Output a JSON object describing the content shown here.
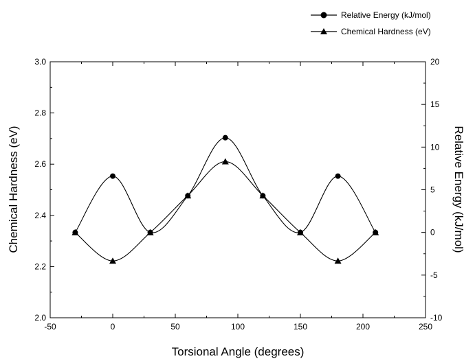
{
  "chart_data": {
    "type": "line",
    "title": "",
    "xlabel": "Torsional Angle (degrees)",
    "ylabel_left": "Chemical Hardness (eV)",
    "ylabel_right": "Relative Energy (kJ/mol)",
    "xlim": [
      -50,
      250
    ],
    "ylim_left": [
      2.0,
      3.0
    ],
    "ylim_right": [
      -10,
      20
    ],
    "x_ticks": [
      "-50",
      "0",
      "50",
      "100",
      "150",
      "200",
      "250"
    ],
    "y_left_ticks": [
      "2.0",
      "2.2",
      "2.4",
      "2.6",
      "2.8",
      "3.0"
    ],
    "y_right_ticks": [
      "-10",
      "-5",
      "0",
      "5",
      "10",
      "15",
      "20"
    ],
    "grid": false,
    "legend_position": "top-right, outside plot",
    "series": [
      {
        "name": "Relative Energy (kJ/mol)",
        "axis": "right",
        "marker": "circle",
        "color": "#000000",
        "x": [
          -30,
          0,
          30,
          60,
          90,
          120,
          150,
          180,
          210
        ],
        "values": [
          0,
          6.6,
          0,
          4.3,
          11.1,
          4.3,
          0,
          6.6,
          0
        ]
      },
      {
        "name": "Chemical Hardness (eV)",
        "axis": "left",
        "marker": "triangle",
        "color": "#000000",
        "x": [
          -30,
          0,
          30,
          60,
          90,
          120,
          150,
          180,
          210
        ],
        "values": [
          2.333,
          2.222,
          2.333,
          2.477,
          2.61,
          2.477,
          2.333,
          2.222,
          2.333
        ]
      }
    ]
  }
}
